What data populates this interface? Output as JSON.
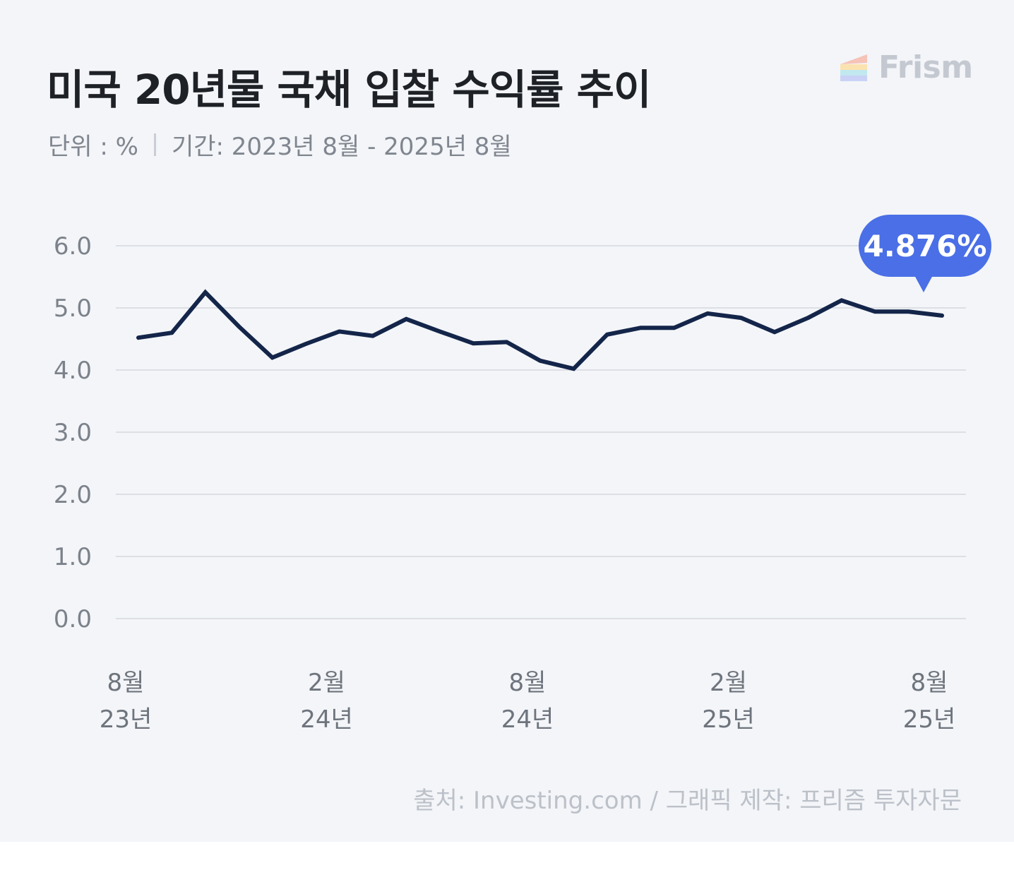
{
  "header": {
    "title": "미국 20년물 국채 입찰 수익률 추이",
    "unit_label": "단위 : %",
    "period_label": "기간: 2023년 8월 - 2025년 8월"
  },
  "logo": {
    "text": "Frism",
    "icon": "prism-logo-icon"
  },
  "footer": {
    "source": "출처: Investing.com  / 그래픽 제작: 프리즘 투자자문"
  },
  "colors": {
    "background": "#f3f5f8",
    "line": "#14254a",
    "callout": "#4a6fe6",
    "grid": "#dcdfe4",
    "tick_text": "#7c828b"
  },
  "chart_data": {
    "type": "line",
    "y_ticks": [
      "6.0",
      "5.0",
      "4.0",
      "3.0",
      "2.0",
      "1.0",
      "0.0"
    ],
    "ylim": [
      0,
      6
    ],
    "grid": true,
    "x_ticks": [
      {
        "month": "8월",
        "year": "23년",
        "index": 0
      },
      {
        "month": "2월",
        "year": "24년",
        "index": 6
      },
      {
        "month": "8월",
        "year": "24년",
        "index": 12
      },
      {
        "month": "2월",
        "year": "25년",
        "index": 18
      },
      {
        "month": "8월",
        "year": "25년",
        "index": 24
      }
    ],
    "series": [
      {
        "values": [
          4.52,
          4.6,
          5.25,
          4.7,
          4.2,
          4.42,
          4.62,
          4.55,
          4.82,
          4.62,
          4.43,
          4.45,
          4.15,
          4.02,
          4.57,
          4.68,
          4.68,
          4.91,
          4.84,
          4.61,
          4.84,
          5.12,
          4.94,
          4.94,
          4.876
        ]
      }
    ],
    "callout": {
      "label": "4.876%",
      "index": 24
    }
  }
}
